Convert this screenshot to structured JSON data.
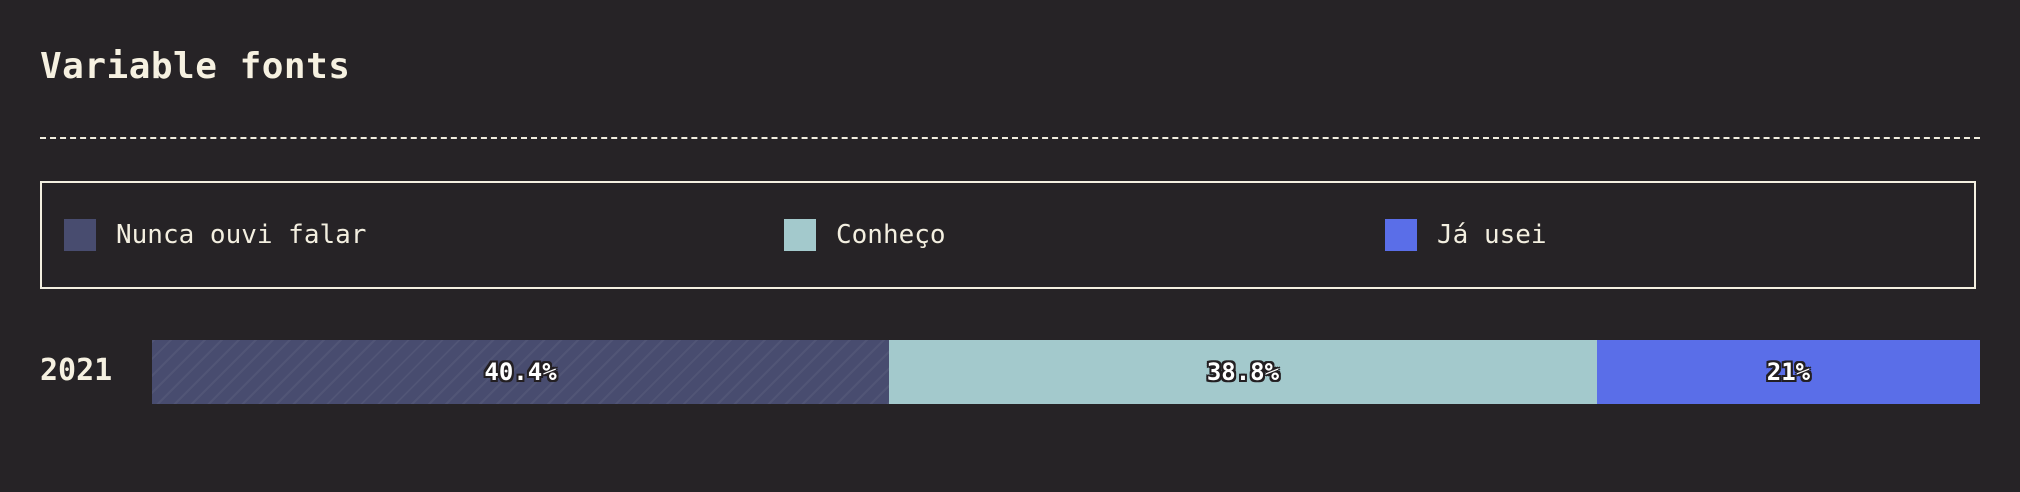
{
  "chart_data": {
    "type": "bar",
    "orientation": "horizontal",
    "stacked": true,
    "title": "Variable fonts",
    "categories": [
      "2021"
    ],
    "series": [
      {
        "name": "Nunca ouvi falar",
        "values": [
          40.4
        ],
        "label": "40.4%",
        "color": "#484c6f",
        "pattern": "hatched"
      },
      {
        "name": "Conheço",
        "values": [
          38.8
        ],
        "label": "38.8%",
        "color": "#a3c9cc"
      },
      {
        "name": "Já usei",
        "values": [
          21
        ],
        "label": "21%",
        "color": "#5a6ee8"
      }
    ],
    "unit": "%",
    "legend_position": "top",
    "xlim": [
      0,
      100
    ]
  },
  "colors": {
    "background": "#262326",
    "foreground": "#f3efe0"
  }
}
